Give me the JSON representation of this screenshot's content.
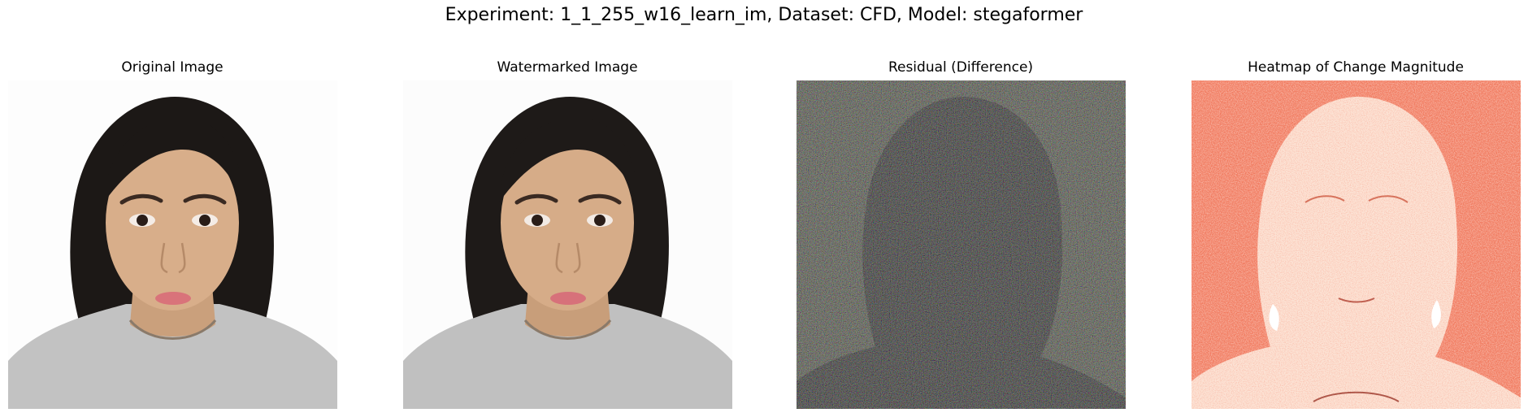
{
  "figure": {
    "title": "Experiment: 1_1_255_w16_learn_im, Dataset: CFD, Model: stegaformer"
  },
  "panels": [
    {
      "title": "Original Image"
    },
    {
      "title": "Watermarked Image"
    },
    {
      "title": "Residual (Difference)"
    },
    {
      "title": "Heatmap of Change Magnitude"
    }
  ],
  "colors": {
    "background": "#ffffff",
    "skin": "#d8ae8a",
    "hair": "#1c1816",
    "shirt": "#c2c2c2",
    "residual_bg": "#4a4d3e",
    "heatmap_bg": "#f0765a",
    "heatmap_face": "#fce4d6"
  }
}
